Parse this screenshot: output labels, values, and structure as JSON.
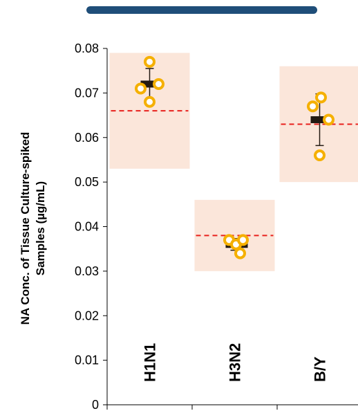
{
  "chart_data": {
    "type": "scatter",
    "title": "",
    "xlabel": "",
    "ylabel": "NA Conc. of Tissue Culture-spiked Samples (µg/mL)",
    "ylabel_lines": [
      "NA Conc. of Tissue Culture-spiked",
      "Samples (µg/mL)"
    ],
    "ylim": [
      0,
      0.08
    ],
    "yticks": [
      0,
      0.01,
      0.02,
      0.03,
      0.04,
      0.05,
      0.06,
      0.07,
      0.08
    ],
    "ytick_labels": [
      "0",
      "0.01",
      "0.02",
      "0.03",
      "0.04",
      "0.05",
      "0.06",
      "0.07",
      "0.08"
    ],
    "categories": [
      "H1N1",
      "H3N2",
      "B/Y"
    ],
    "groups": [
      {
        "category": "H1N1",
        "points": [
          0.077,
          0.071,
          0.072,
          0.068
        ],
        "mean": 0.072,
        "sd_low": 0.0685,
        "sd_high": 0.0755,
        "expected": 0.066,
        "range": [
          0.053,
          0.079
        ]
      },
      {
        "category": "H3N2",
        "points": [
          0.037,
          0.036,
          0.037,
          0.034
        ],
        "mean": 0.036,
        "sd_low": 0.0347,
        "sd_high": 0.0373,
        "expected": 0.038,
        "range": [
          0.03,
          0.046
        ]
      },
      {
        "category": "B/Y",
        "points": [
          0.067,
          0.069,
          0.064,
          0.056
        ],
        "mean": 0.064,
        "sd_low": 0.0582,
        "sd_high": 0.0698,
        "expected": 0.063,
        "range": [
          0.05,
          0.076
        ]
      }
    ],
    "grid": false,
    "colors": {
      "point": "#f5b000",
      "mean_bar": "#231a12",
      "expected_line": "#e8201c",
      "range_box": "#fbe6da",
      "header_bar": "#1f4e79",
      "axis": "#000000"
    }
  }
}
